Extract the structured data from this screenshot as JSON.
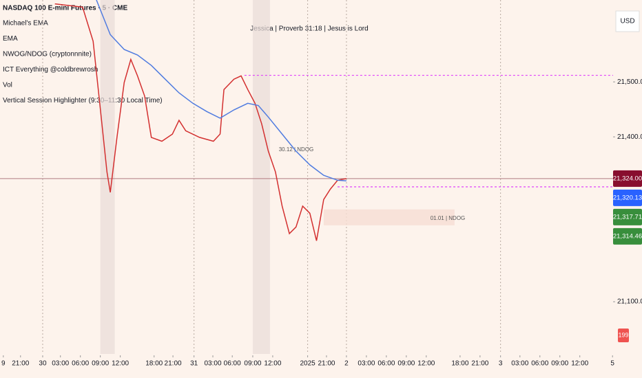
{
  "chart_data": {
    "type": "line",
    "title": "NASDAQ 100 E-mini Futures · 5 · CME",
    "legend_items": [
      "Michael's EMA",
      "EMA",
      "NWOG/NDOG (cryptonnnite)",
      "ICT Everything @coldbrewrosh",
      "Vol",
      "Vertical Session Highlighter (9:30–11:30 Local Time)"
    ],
    "header_note": "Jessica | Proverb 31:18 | Jesus is Lord",
    "currency": "USD",
    "annotations": [
      "30.12 | NDOG",
      "01.01 | NDOG"
    ],
    "xlim": [
      0,
      1106
    ],
    "xticks": [
      {
        "value": 6,
        "label": "9"
      },
      {
        "value": 37,
        "label": "21:00"
      },
      {
        "value": 77,
        "label": "30"
      },
      {
        "value": 109,
        "label": "03:00"
      },
      {
        "value": 145,
        "label": "06:00"
      },
      {
        "value": 181,
        "label": "09:00"
      },
      {
        "value": 217,
        "label": "12:00"
      },
      {
        "value": 278,
        "label": "18:00"
      },
      {
        "value": 312,
        "label": "21:00"
      },
      {
        "value": 350,
        "label": "31"
      },
      {
        "value": 384,
        "label": "03:00"
      },
      {
        "value": 419,
        "label": "06:00"
      },
      {
        "value": 456,
        "label": "09:00"
      },
      {
        "value": 492,
        "label": "12:00"
      },
      {
        "value": 555,
        "label": "2025"
      },
      {
        "value": 589,
        "label": "21:00"
      },
      {
        "value": 625,
        "label": "2"
      },
      {
        "value": 661,
        "label": "03:00"
      },
      {
        "value": 697,
        "label": "06:00"
      },
      {
        "value": 733,
        "label": "09:00"
      },
      {
        "value": 769,
        "label": "12:00"
      },
      {
        "value": 830,
        "label": "18:00"
      },
      {
        "value": 866,
        "label": "21:00"
      },
      {
        "value": 903,
        "label": "3"
      },
      {
        "value": 938,
        "label": "03:00"
      },
      {
        "value": 974,
        "label": "06:00"
      },
      {
        "value": 1010,
        "label": "09:00"
      },
      {
        "value": 1046,
        "label": "12:00"
      },
      {
        "value": 1105,
        "label": "5"
      }
    ],
    "day_separators": [
      77,
      350,
      555,
      625,
      903
    ],
    "ylim": [
      21005,
      21649
    ],
    "yticks": [
      {
        "value": 21500,
        "label": "21,500.00"
      },
      {
        "value": 21400,
        "label": "21,400.00"
      },
      {
        "value": 21100,
        "label": "21,100.00"
      }
    ],
    "sessions": [
      [
        181,
        207
      ],
      [
        456,
        487
      ]
    ],
    "levels": [
      {
        "value": 21512,
        "from": 441,
        "color": "#e040fb"
      },
      {
        "value": 21309,
        "from": 609,
        "color": "#e040fb"
      }
    ],
    "gap_box": {
      "from": 584,
      "to": 820,
      "top": 21268,
      "bottom": 21239
    },
    "series": [
      {
        "name": "Price",
        "color": "#d32f2f",
        "x": [
          99,
          149,
          168,
          180,
          193,
          199,
          211,
          224,
          236,
          248,
          261,
          273,
          292,
          311,
          323,
          335,
          360,
          385,
          397,
          404,
          422,
          435,
          447,
          460,
          472,
          484,
          497,
          509,
          522,
          534,
          546,
          559,
          571,
          584,
          596,
          609,
          625
        ],
        "values": [
          21642,
          21636,
          21574,
          21461,
          21336,
          21299,
          21399,
          21499,
          21541,
          21511,
          21474,
          21399,
          21392,
          21405,
          21430,
          21411,
          21399,
          21392,
          21405,
          21486,
          21505,
          21511,
          21486,
          21461,
          21424,
          21374,
          21336,
          21274,
          21224,
          21236,
          21274,
          21261,
          21211,
          21286,
          21305,
          21321,
          21324
        ]
      },
      {
        "name": "EMA",
        "color": "#4f7be0",
        "x": [
          174,
          199,
          224,
          248,
          273,
          298,
          323,
          348,
          373,
          397,
          422,
          447,
          466,
          484,
          509,
          534,
          559,
          584,
          609,
          625
        ],
        "values": [
          21649,
          21586,
          21559,
          21549,
          21530,
          21505,
          21480,
          21461,
          21446,
          21434,
          21449,
          21461,
          21457,
          21436,
          21405,
          21374,
          21349,
          21330,
          21321,
          21320
        ]
      }
    ],
    "price_tags": [
      {
        "value": 21324,
        "label": "21,324.00",
        "color": "#880e2e"
      },
      {
        "value": 21320.13,
        "label": "21,320.13",
        "color": "#2962ff"
      },
      {
        "value": 21317.71,
        "label": "21,317.71",
        "color": "#388e3c"
      },
      {
        "value": 21314.46,
        "label": "21,314.46",
        "color": "#388e3c"
      }
    ],
    "volume_tag": 199
  }
}
